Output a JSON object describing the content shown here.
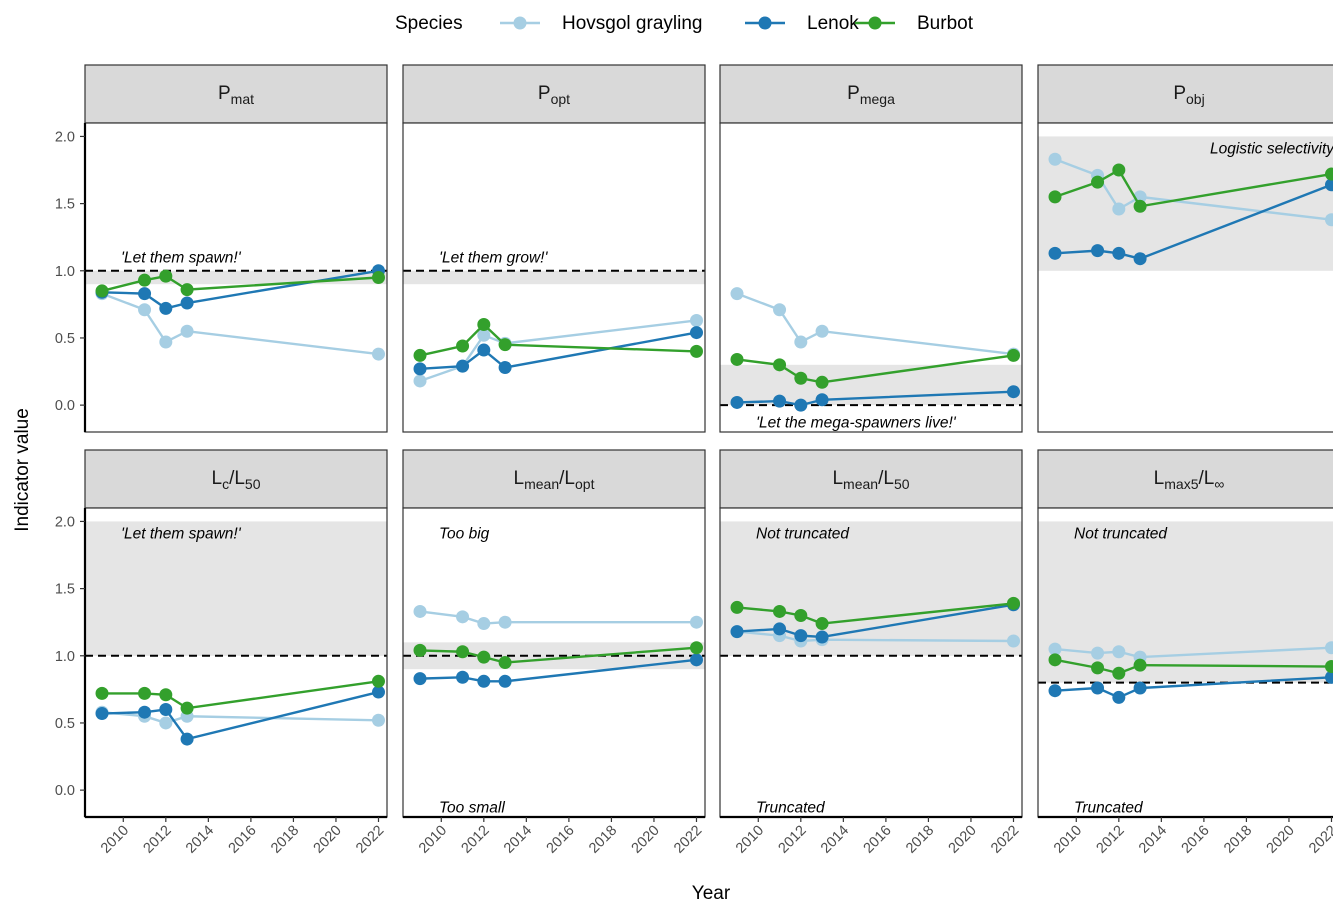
{
  "chart_data": {
    "type": "line",
    "xlabel": "Year",
    "ylabel": "Indicator value",
    "ylim": [
      -0.2,
      2.1
    ],
    "xlim": [
      2008.2,
      2022.4
    ],
    "yticks": [
      "0.0",
      "0.5",
      "1.0",
      "1.5",
      "2.0"
    ],
    "xticks": [
      "2010",
      "2012",
      "2014",
      "2016",
      "2018",
      "2020",
      "2022"
    ],
    "legend": {
      "title": "Species",
      "position": "top",
      "entries": [
        "Hovsgol grayling",
        "Lenok",
        "Burbot"
      ]
    },
    "colors": {
      "Hovsgol grayling": "#a6cee3",
      "Lenok": "#1f78b4",
      "Burbot": "#33a02c",
      "band": "#e5e5e5",
      "strip": "#d9d9d9"
    },
    "x": [
      2009,
      2011,
      2012,
      2013,
      2022
    ],
    "panels": [
      {
        "label": {
          "main": "P",
          "sub": "mat"
        },
        "band": [
          0.9,
          1.0
        ],
        "ref_line": 1.0,
        "annotations": [
          {
            "text": "'Let them spawn!'",
            "y": 1.1
          }
        ],
        "series": [
          {
            "name": "Hovsgol grayling",
            "values": [
              0.83,
              0.71,
              0.47,
              0.55,
              0.38
            ]
          },
          {
            "name": "Lenok",
            "values": [
              0.84,
              0.83,
              0.72,
              0.76,
              1.0
            ]
          },
          {
            "name": "Burbot",
            "values": [
              0.85,
              0.93,
              0.96,
              0.86,
              0.95
            ]
          }
        ]
      },
      {
        "label": {
          "main": "P",
          "sub": "opt"
        },
        "band": [
          0.9,
          1.0
        ],
        "ref_line": 1.0,
        "annotations": [
          {
            "text": "'Let them grow!'",
            "y": 1.1
          }
        ],
        "series": [
          {
            "name": "Hovsgol grayling",
            "values": [
              0.18,
              0.29,
              0.52,
              0.46,
              0.63
            ]
          },
          {
            "name": "Lenok",
            "values": [
              0.27,
              0.29,
              0.41,
              0.28,
              0.54
            ]
          },
          {
            "name": "Burbot",
            "values": [
              0.37,
              0.44,
              0.6,
              0.45,
              0.4
            ]
          }
        ]
      },
      {
        "label": {
          "main": "P",
          "sub": "mega"
        },
        "band": [
          0.0,
          0.3
        ],
        "ref_line": 0.0,
        "annotations": [
          {
            "text": "'Let the mega-spawners live!'",
            "y": -0.13
          }
        ],
        "series": [
          {
            "name": "Hovsgol grayling",
            "values": [
              0.83,
              0.71,
              0.47,
              0.55,
              0.38
            ]
          },
          {
            "name": "Lenok",
            "values": [
              0.02,
              0.03,
              0.0,
              0.04,
              0.1
            ]
          },
          {
            "name": "Burbot",
            "values": [
              0.34,
              0.3,
              0.2,
              0.17,
              0.37
            ]
          }
        ]
      },
      {
        "label": {
          "main": "P",
          "sub": "obj"
        },
        "band": [
          1.0,
          2.0
        ],
        "ref_line": null,
        "annotations": [
          {
            "text": "Logistic selectivity",
            "y": 1.91,
            "align": "right"
          }
        ],
        "series": [
          {
            "name": "Hovsgol grayling",
            "values": [
              1.83,
              1.71,
              1.46,
              1.55,
              1.38
            ]
          },
          {
            "name": "Lenok",
            "values": [
              1.13,
              1.15,
              1.13,
              1.09,
              1.64
            ]
          },
          {
            "name": "Burbot",
            "values": [
              1.55,
              1.66,
              1.75,
              1.48,
              1.72
            ]
          }
        ]
      },
      {
        "label": {
          "main": "L",
          "sub": "c",
          "main2": "L",
          "sub2": "50"
        },
        "band": [
          1.0,
          2.0
        ],
        "ref_line": 1.0,
        "annotations": [
          {
            "text": "'Let them spawn!'",
            "y": 1.91
          }
        ],
        "series": [
          {
            "name": "Hovsgol grayling",
            "values": [
              0.58,
              0.55,
              0.5,
              0.55,
              0.52
            ]
          },
          {
            "name": "Lenok",
            "values": [
              0.57,
              0.58,
              0.6,
              0.38,
              0.73
            ]
          },
          {
            "name": "Burbot",
            "values": [
              0.72,
              0.72,
              0.71,
              0.61,
              0.81
            ]
          }
        ]
      },
      {
        "label": {
          "main": "L",
          "sub": "mean",
          "main2": "L",
          "sub2": "opt"
        },
        "band": [
          0.9,
          1.1
        ],
        "ref_line": 1.0,
        "annotations": [
          {
            "text": "Too big",
            "y": 1.91
          },
          {
            "text": "Too small",
            "y": -0.13
          }
        ],
        "series": [
          {
            "name": "Hovsgol grayling",
            "values": [
              1.33,
              1.29,
              1.24,
              1.25,
              1.25
            ]
          },
          {
            "name": "Lenok",
            "values": [
              0.83,
              0.84,
              0.81,
              0.81,
              0.97
            ]
          },
          {
            "name": "Burbot",
            "values": [
              1.04,
              1.03,
              0.99,
              0.95,
              1.06
            ]
          }
        ]
      },
      {
        "label": {
          "main": "L",
          "sub": "mean",
          "main2": "L",
          "sub2": "50"
        },
        "band": [
          1.0,
          2.0
        ],
        "ref_line": 1.0,
        "annotations": [
          {
            "text": "Not truncated",
            "y": 1.91
          },
          {
            "text": "Truncated",
            "y": -0.13
          }
        ],
        "series": [
          {
            "name": "Hovsgol grayling",
            "values": [
              1.18,
              1.15,
              1.11,
              1.12,
              1.11
            ]
          },
          {
            "name": "Lenok",
            "values": [
              1.18,
              1.2,
              1.15,
              1.14,
              1.38
            ]
          },
          {
            "name": "Burbot",
            "values": [
              1.36,
              1.33,
              1.3,
              1.24,
              1.39
            ]
          }
        ]
      },
      {
        "label": {
          "main": "L",
          "sub": "max5",
          "main2": "L",
          "sub2": "∞"
        },
        "band": [
          0.8,
          2.0
        ],
        "ref_line": 0.8,
        "annotations": [
          {
            "text": "Not truncated",
            "y": 1.91
          },
          {
            "text": "Truncated",
            "y": -0.13
          }
        ],
        "series": [
          {
            "name": "Hovsgol grayling",
            "values": [
              1.05,
              1.02,
              1.03,
              0.99,
              1.06
            ]
          },
          {
            "name": "Lenok",
            "values": [
              0.74,
              0.76,
              0.69,
              0.76,
              0.84
            ]
          },
          {
            "name": "Burbot",
            "values": [
              0.97,
              0.91,
              0.87,
              0.93,
              0.92
            ]
          }
        ]
      }
    ]
  }
}
